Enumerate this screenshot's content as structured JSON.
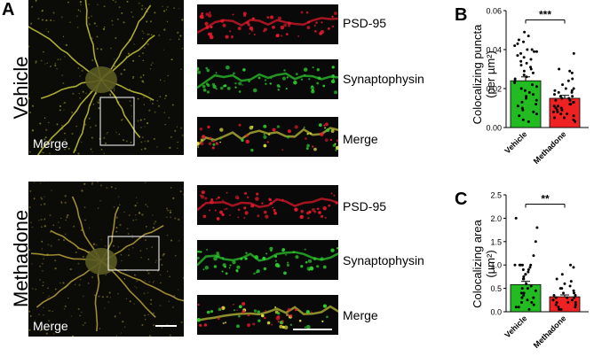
{
  "panel_letters": {
    "a": "A",
    "b": "B",
    "c": "C"
  },
  "rows": {
    "vehicle": {
      "label": "Vehicle",
      "merge_label": "Merge"
    },
    "methadone": {
      "label": "Methadone",
      "merge_label": "Merge"
    }
  },
  "strip_labels": {
    "psd95": "PSD-95",
    "synaptophysin": "Synaptophysin",
    "merge": "Merge"
  },
  "colors": {
    "vehicle_bar": "#22bb22",
    "methadone_bar": "#ee2222",
    "psd95": "#e8192c",
    "synaptophysin": "#2ed12e",
    "merge_yellow": "#c8c83a"
  },
  "chart_data": [
    {
      "type": "bar",
      "panel": "B",
      "ylabel_line1": "Colocalizing puncta",
      "ylabel_line2": "(per µm²)",
      "categories": [
        "Vehicle",
        "Methadone"
      ],
      "values": [
        0.024,
        0.015
      ],
      "errors": [
        0.002,
        0.0015
      ],
      "ylim": [
        0,
        0.06
      ],
      "yticks": [
        0,
        0.02,
        0.04,
        0.06
      ],
      "ytick_labels": [
        "0.00",
        "0.02",
        "0.04",
        "0.06"
      ],
      "significance": "***",
      "points": {
        "Vehicle": [
          0.049,
          0.047,
          0.045,
          0.044,
          0.043,
          0.042,
          0.04,
          0.04,
          0.039,
          0.039,
          0.038,
          0.037,
          0.036,
          0.035,
          0.034,
          0.033,
          0.032,
          0.031,
          0.03,
          0.029,
          0.028,
          0.027,
          0.026,
          0.025,
          0.024,
          0.023,
          0.022,
          0.021,
          0.02,
          0.019,
          0.018,
          0.017,
          0.016,
          0.015,
          0.014,
          0.013,
          0.012,
          0.011,
          0.01,
          0.009,
          0.008,
          0.007,
          0.006,
          0.004,
          0.003
        ],
        "Methadone": [
          0.038,
          0.03,
          0.029,
          0.028,
          0.025,
          0.024,
          0.022,
          0.02,
          0.02,
          0.019,
          0.019,
          0.018,
          0.018,
          0.017,
          0.016,
          0.016,
          0.015,
          0.015,
          0.014,
          0.014,
          0.013,
          0.013,
          0.012,
          0.012,
          0.011,
          0.011,
          0.01,
          0.01,
          0.009,
          0.009,
          0.008,
          0.008,
          0.007,
          0.007,
          0.006,
          0.005,
          0.005,
          0.004,
          0.003
        ]
      }
    },
    {
      "type": "bar",
      "panel": "C",
      "ylabel_line1": "Colocalizing area",
      "ylabel_line2": "(µm²)",
      "categories": [
        "Vehicle",
        "Methadone"
      ],
      "values": [
        0.58,
        0.32
      ],
      "errors": [
        0.07,
        0.04
      ],
      "ylim": [
        0,
        2.5
      ],
      "yticks": [
        0,
        0.5,
        1.0,
        1.5,
        2.0,
        2.5
      ],
      "ytick_labels": [
        "0.0",
        "0.5",
        "1.0",
        "1.5",
        "2.0",
        "2.5"
      ],
      "significance": "**",
      "points": {
        "Vehicle": [
          2.0,
          1.8,
          1.5,
          1.2,
          1.0,
          1.0,
          1.0,
          1.0,
          1.0,
          0.95,
          0.9,
          0.9,
          0.85,
          0.8,
          0.8,
          0.75,
          0.7,
          0.7,
          0.6,
          0.55,
          0.5,
          0.5,
          0.45,
          0.4,
          0.4,
          0.35,
          0.3,
          0.3,
          0.25,
          0.2,
          0.2,
          0.15,
          0.1,
          0.1,
          0.05
        ],
        "Methadone": [
          1.0,
          0.95,
          0.8,
          0.7,
          0.65,
          0.6,
          0.55,
          0.5,
          0.5,
          0.45,
          0.4,
          0.4,
          0.35,
          0.35,
          0.3,
          0.3,
          0.3,
          0.25,
          0.25,
          0.2,
          0.2,
          0.2,
          0.15,
          0.15,
          0.1,
          0.1,
          0.05,
          0.05
        ]
      }
    }
  ]
}
